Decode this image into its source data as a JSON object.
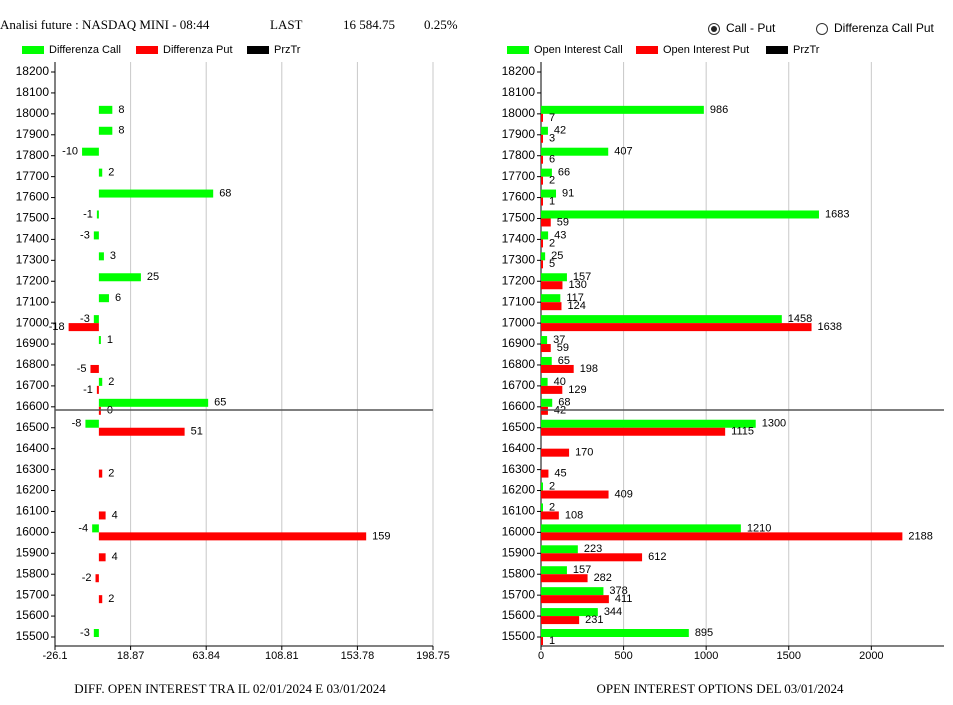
{
  "header": {
    "title": "Analisi future : NASDAQ MINI - 08:44",
    "last_label": "LAST",
    "last": {
      "value": 16584.75,
      "label": "16 584.75"
    },
    "change": {
      "value": 0.25,
      "label": "0.25%"
    }
  },
  "controls": {
    "options": [
      {
        "label": "Call - Put",
        "selected": true
      },
      {
        "label": "Differenza Call Put",
        "selected": false
      }
    ]
  },
  "chart_data": [
    {
      "type": "bar",
      "orientation": "horizontal",
      "title": "DIFF. OPEN INTEREST TRA IL 02/01/2024 E 03/01/2024",
      "categories": [
        18200,
        18100,
        18000,
        17900,
        17800,
        17700,
        17600,
        17500,
        17400,
        17300,
        17200,
        17100,
        17000,
        16900,
        16800,
        16700,
        16600,
        16500,
        16400,
        16300,
        16200,
        16100,
        16000,
        15900,
        15800,
        15700,
        15600,
        15500
      ],
      "series": [
        {
          "name": "Differenza Call",
          "color": "#00ff00",
          "values": [
            null,
            null,
            8,
            8,
            -10,
            2,
            68,
            -1,
            -3,
            3,
            25,
            6,
            -3,
            1,
            null,
            2,
            65,
            -8,
            null,
            null,
            null,
            null,
            -4,
            null,
            null,
            null,
            null,
            -3
          ]
        },
        {
          "name": "Differenza Put",
          "color": "#ff0000",
          "values": [
            null,
            null,
            null,
            null,
            null,
            null,
            null,
            null,
            null,
            null,
            null,
            null,
            -18,
            null,
            -5,
            -1,
            0,
            51,
            null,
            2,
            null,
            4,
            159,
            4,
            -2,
            2,
            null,
            null
          ]
        },
        {
          "name": "PrzTr",
          "color": "#000000"
        }
      ],
      "xlim": [
        -26.1,
        198.75
      ],
      "xticks": [
        -26.1,
        18.87,
        63.84,
        108.81,
        153.78,
        198.75
      ],
      "grid": true
    },
    {
      "type": "bar",
      "orientation": "horizontal",
      "title": "OPEN INTEREST OPTIONS DEL 03/01/2024",
      "categories": [
        18200,
        18100,
        18000,
        17900,
        17800,
        17700,
        17600,
        17500,
        17400,
        17300,
        17200,
        17100,
        17000,
        16900,
        16800,
        16700,
        16600,
        16500,
        16400,
        16300,
        16200,
        16100,
        16000,
        15900,
        15800,
        15700,
        15600,
        15500
      ],
      "series": [
        {
          "name": "Open Interest Call",
          "color": "#00ff00",
          "values": [
            null,
            null,
            986,
            42,
            407,
            66,
            91,
            1683,
            43,
            25,
            157,
            117,
            1458,
            37,
            65,
            40,
            68,
            1300,
            null,
            null,
            2,
            2,
            1210,
            223,
            157,
            378,
            344,
            895
          ]
        },
        {
          "name": "Open Interest Put",
          "color": "#ff0000",
          "values": [
            null,
            null,
            7,
            3,
            6,
            2,
            1,
            59,
            2,
            5,
            130,
            124,
            1638,
            59,
            198,
            129,
            42,
            1115,
            170,
            45,
            409,
            108,
            2188,
            612,
            282,
            411,
            231,
            1
          ]
        },
        {
          "name": "PrzTr",
          "color": "#000000"
        }
      ],
      "xlim": [
        0,
        2440
      ],
      "xticks": [
        0,
        500,
        1000,
        1500,
        2000
      ],
      "grid": true
    }
  ]
}
